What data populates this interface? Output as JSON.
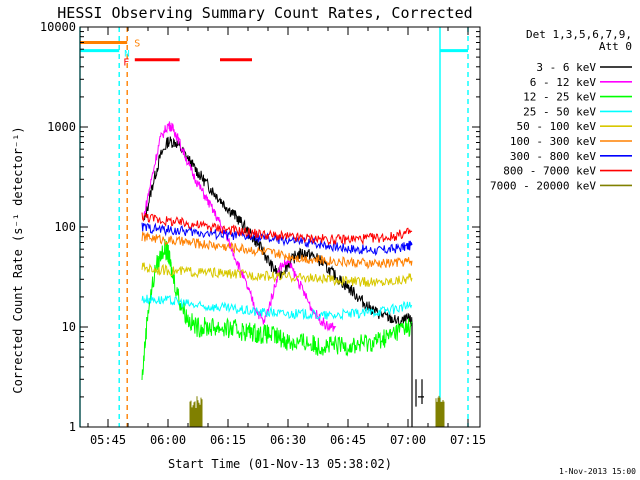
{
  "chart_data": {
    "type": "line",
    "title": "HESSI Observing Summary Count Rates, Corrected",
    "xlabel": "Start Time (01-Nov-13 05:38:02)",
    "ylabel": "Corrected Count Rate (s⁻¹ detector⁻¹)",
    "footer": "1-Nov-2013 15:00",
    "x_unit": "minutes since 05:38:02",
    "xlim": [
      0,
      100
    ],
    "ylim": [
      1,
      10000
    ],
    "yscale": "log",
    "x_ticks": [
      {
        "label": "05:45",
        "value": 7
      },
      {
        "label": "06:00",
        "value": 22
      },
      {
        "label": "06:15",
        "value": 37
      },
      {
        "label": "06:30",
        "value": 52
      },
      {
        "label": "06:45",
        "value": 67
      },
      {
        "label": "07:00",
        "value": 82
      },
      {
        "label": "07:15",
        "value": 97
      }
    ],
    "y_ticks": [
      {
        "label": "1",
        "value": 1
      },
      {
        "label": "10",
        "value": 10
      },
      {
        "label": "100",
        "value": 100
      },
      {
        "label": "1000",
        "value": 1000
      },
      {
        "label": "10000",
        "value": 10000
      }
    ],
    "legend": {
      "header": [
        "Det 1,3,5,6,7,9,",
        "Att 0"
      ],
      "placement": "right"
    },
    "series": [
      {
        "name": "3 - 6 keV",
        "color": "#000000",
        "x": [
          16,
          18,
          20,
          22,
          24,
          26,
          28,
          30,
          32,
          34,
          36,
          38,
          40,
          42,
          44,
          46,
          48,
          50,
          52,
          54,
          56,
          58,
          60,
          62,
          64,
          66,
          68,
          70,
          72,
          74,
          76,
          78,
          80,
          82,
          83
        ],
        "y": [
          110,
          250,
          500,
          720,
          700,
          550,
          420,
          330,
          260,
          210,
          170,
          140,
          115,
          90,
          72,
          55,
          40,
          33,
          42,
          52,
          55,
          52,
          46,
          38,
          32,
          27,
          23,
          19,
          16,
          14,
          13,
          12,
          11,
          12,
          11
        ]
      },
      {
        "name": "6 - 12 keV",
        "color": "#ff00ff",
        "x": [
          16,
          18,
          20,
          22,
          23,
          24,
          26,
          28,
          30,
          32,
          34,
          36,
          38,
          40,
          42,
          44,
          46,
          48,
          50,
          52,
          54,
          56,
          58,
          60,
          62,
          64
        ],
        "y": [
          130,
          320,
          750,
          1050,
          1000,
          850,
          550,
          350,
          250,
          180,
          130,
          90,
          60,
          38,
          24,
          15,
          11,
          20,
          40,
          45,
          32,
          22,
          15,
          12,
          10,
          10
        ]
      },
      {
        "name": "12 - 25 keV",
        "color": "#00ff00",
        "x": [
          15.5,
          17,
          19,
          21,
          22,
          23,
          25,
          27,
          29,
          31,
          33,
          35,
          37,
          39,
          41,
          43,
          45,
          47,
          49,
          51,
          53,
          55,
          57,
          59,
          61,
          63,
          65,
          67,
          69,
          71,
          73,
          75,
          77,
          79,
          81,
          83
        ],
        "y": [
          3,
          15,
          40,
          62,
          55,
          35,
          18,
          12,
          10,
          10,
          10,
          10,
          9.5,
          9.5,
          9,
          9,
          8.5,
          8.5,
          8,
          7.5,
          7,
          7,
          7,
          6.5,
          6.5,
          6.5,
          6.5,
          6.5,
          6.5,
          7,
          7,
          7.5,
          8,
          9,
          10,
          10
        ]
      },
      {
        "name": "25 - 50 keV",
        "color": "#00ffff",
        "x": [
          15.5,
          18,
          21,
          24,
          27,
          30,
          33,
          36,
          39,
          42,
          45,
          48,
          51,
          54,
          57,
          60,
          63,
          66,
          69,
          72,
          75,
          78,
          81,
          83
        ],
        "y": [
          19,
          19,
          18.5,
          18,
          17,
          16,
          16,
          15.5,
          15,
          14.5,
          14,
          14,
          13.5,
          13.5,
          13.5,
          13,
          13,
          13.5,
          13.5,
          14,
          14.5,
          15,
          16,
          16.5
        ]
      },
      {
        "name": "50 - 100 keV",
        "color": "#d8c800",
        "x": [
          15.5,
          18,
          21,
          24,
          27,
          30,
          33,
          36,
          39,
          42,
          45,
          48,
          51,
          54,
          57,
          60,
          63,
          66,
          69,
          72,
          75,
          78,
          81,
          83
        ],
        "y": [
          40,
          38,
          37,
          36,
          36,
          35,
          35,
          34,
          34,
          33,
          33,
          32,
          32,
          31.5,
          31,
          30,
          29.5,
          29,
          28.5,
          28,
          28,
          29,
          30,
          31
        ]
      },
      {
        "name": "100 - 300 keV",
        "color": "#ff8000",
        "x": [
          15.5,
          18,
          21,
          24,
          27,
          30,
          33,
          36,
          39,
          42,
          45,
          48,
          51,
          54,
          57,
          60,
          63,
          66,
          69,
          72,
          75,
          78,
          81,
          83
        ],
        "y": [
          80,
          78,
          75,
          72,
          70,
          68,
          66,
          64,
          62,
          60,
          57,
          55,
          52,
          50,
          48,
          47,
          46,
          45,
          44,
          43,
          43,
          44,
          45,
          46
        ]
      },
      {
        "name": "300 - 800 keV",
        "color": "#0000ff",
        "x": [
          15.5,
          18,
          21,
          24,
          27,
          30,
          33,
          36,
          39,
          42,
          45,
          48,
          51,
          54,
          57,
          60,
          63,
          66,
          69,
          72,
          75,
          78,
          81,
          83
        ],
        "y": [
          100,
          97,
          94,
          92,
          90,
          88,
          86,
          84,
          82,
          80,
          78,
          76,
          74,
          72,
          70,
          68,
          65,
          62,
          60,
          59,
          58,
          60,
          63,
          66
        ]
      },
      {
        "name": "800 - 7000 keV",
        "color": "#ff0000",
        "x": [
          15.5,
          18,
          21,
          24,
          27,
          30,
          33,
          36,
          39,
          42,
          45,
          48,
          51,
          54,
          57,
          60,
          63,
          66,
          69,
          72,
          75,
          78,
          81,
          83
        ],
        "y": [
          130,
          122,
          116,
          112,
          108,
          104,
          100,
          96,
          92,
          88,
          85,
          82,
          80,
          78,
          77,
          76,
          75,
          75,
          76,
          77,
          78,
          80,
          86,
          90
        ]
      },
      {
        "name": "7000 - 20000 keV",
        "color": "#808000",
        "x": [],
        "y": []
      }
    ],
    "overlays": {
      "attenuator_levels": {
        "color": "#00ffff",
        "level": 5800,
        "segments": [
          [
            0,
            9.8
          ],
          [
            90,
            97
          ]
        ]
      },
      "S_flag": {
        "label": "S",
        "color": "#ff8000",
        "level": 7000,
        "x": [
          0,
          11.8
        ]
      },
      "N_flag": {
        "label": "N",
        "color": "#00ffff",
        "x": 11.8
      },
      "F_flag": {
        "label": "F",
        "color": "#ff0000",
        "x": 11.8
      },
      "flare_bars": {
        "color": "#ff0000",
        "level": 4700,
        "segments": [
          [
            13.7,
            24.9
          ],
          [
            35,
            43
          ]
        ]
      },
      "vertical_lines": [
        {
          "x": 0,
          "color": "#00ffff",
          "style": "solid"
        },
        {
          "x": 9.8,
          "color": "#00ffff",
          "style": "dashed"
        },
        {
          "x": 11.8,
          "color": "#ff8000",
          "style": "dashed"
        },
        {
          "x": 90,
          "color": "#00ffff",
          "style": "solid"
        },
        {
          "x": 97,
          "color": "#00ffff",
          "style": "dashed"
        }
      ],
      "gamma_burst_regions": [
        [
          27.5,
          30.5
        ],
        [
          89,
          91
        ]
      ]
    }
  }
}
